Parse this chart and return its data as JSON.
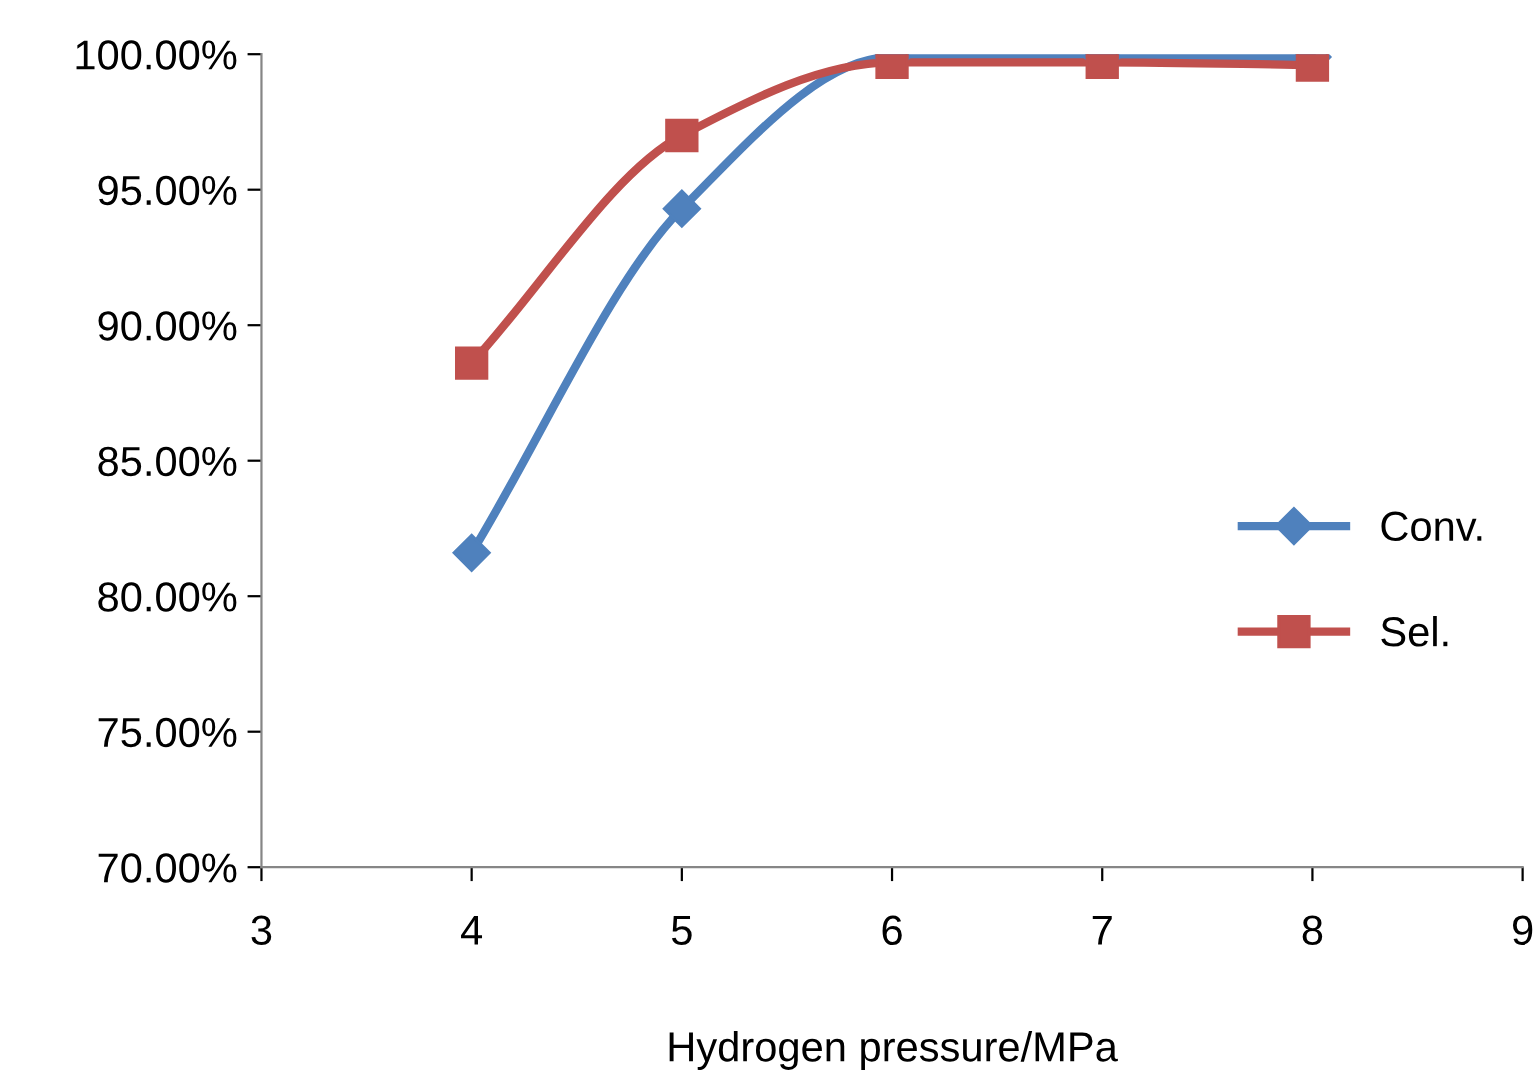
{
  "chart_data": {
    "type": "line",
    "xlabel": "Hydrogen pressure/MPa",
    "x": [
      4,
      5,
      6,
      7,
      8
    ],
    "series": [
      {
        "name": "Conv.",
        "color": "#4f81bd",
        "marker": "diamond",
        "values": [
          81.6,
          94.3,
          99.9,
          99.9,
          99.9
        ]
      },
      {
        "name": "Sel.",
        "color": "#c0504d",
        "marker": "square",
        "values": [
          88.6,
          97.0,
          99.7,
          99.7,
          99.6
        ]
      }
    ],
    "xlim": [
      3,
      9
    ],
    "xticks": [
      3,
      4,
      5,
      6,
      7,
      8,
      9
    ],
    "ylim": [
      70,
      100
    ],
    "yticks": [
      {
        "value": 70,
        "label": "70.00%"
      },
      {
        "value": 75,
        "label": "75.00%"
      },
      {
        "value": 80,
        "label": "80.00%"
      },
      {
        "value": 85,
        "label": "85.00%"
      },
      {
        "value": 90,
        "label": "90.00%"
      },
      {
        "value": 95,
        "label": "95.00%"
      },
      {
        "value": 100,
        "label": "100.00%"
      }
    ],
    "grid": false,
    "legend": "right",
    "line_style": "solid"
  }
}
